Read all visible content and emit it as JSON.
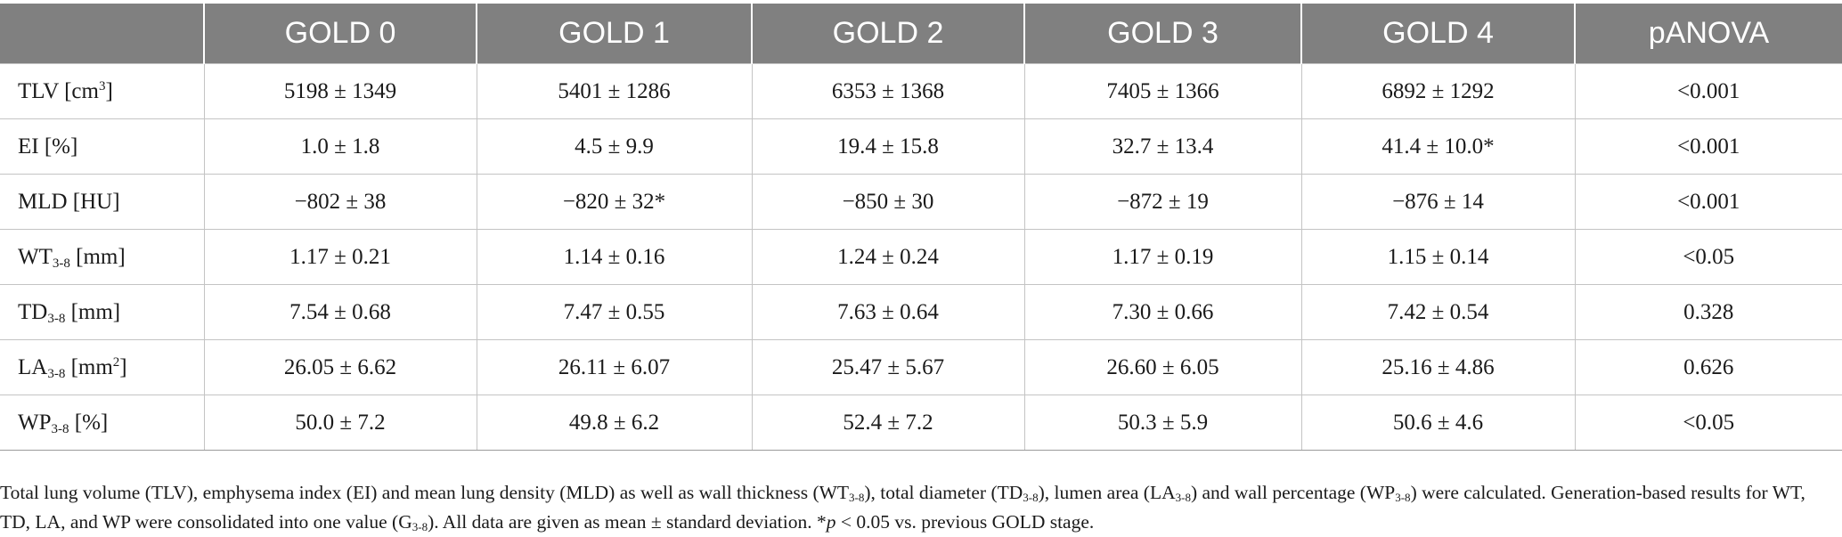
{
  "table": {
    "header": [
      "",
      "GOLD 0",
      "GOLD 1",
      "GOLD 2",
      "GOLD 3",
      "GOLD 4",
      "pANOVA"
    ],
    "rows": [
      {
        "label": {
          "main": "TLV [cm",
          "sub": "",
          "sup": "3",
          "unit": "]"
        },
        "cells": [
          "5198 ± 1349",
          "5401 ± 1286",
          "6353 ± 1368",
          "7405 ± 1366",
          "6892 ± 1292",
          "<0.001"
        ]
      },
      {
        "label": {
          "main": "EI [%]",
          "sub": "",
          "sup": "",
          "unit": ""
        },
        "cells": [
          "1.0 ± 1.8",
          "4.5 ± 9.9",
          "19.4 ± 15.8",
          "32.7 ± 13.4",
          "41.4 ± 10.0*",
          "<0.001"
        ]
      },
      {
        "label": {
          "main": "MLD [HU]",
          "sub": "",
          "sup": "",
          "unit": ""
        },
        "cells": [
          "−802 ± 38",
          "−820 ± 32*",
          "−850 ± 30",
          "−872 ± 19",
          "−876 ± 14",
          "<0.001"
        ]
      },
      {
        "label": {
          "main": "WT",
          "sub": "3-8",
          "sup": "",
          "unit": " [mm]"
        },
        "cells": [
          "1.17 ± 0.21",
          "1.14 ± 0.16",
          "1.24 ± 0.24",
          "1.17 ± 0.19",
          "1.15 ± 0.14",
          "<0.05"
        ]
      },
      {
        "label": {
          "main": "TD",
          "sub": "3-8",
          "sup": "",
          "unit": " [mm]"
        },
        "cells": [
          "7.54 ± 0.68",
          "7.47 ± 0.55",
          "7.63 ± 0.64",
          "7.30 ± 0.66",
          "7.42 ± 0.54",
          "0.328"
        ]
      },
      {
        "label": {
          "main": "LA",
          "sub": "3-8",
          "sup": "",
          "unit": " [mm"
        },
        "label_sup2": "2",
        "label_tail": "]",
        "cells": [
          "26.05 ± 6.62",
          "26.11 ± 6.07",
          "25.47 ± 5.67",
          "26.60 ± 6.05",
          "25.16 ± 4.86",
          "0.626"
        ]
      },
      {
        "label": {
          "main": "WP",
          "sub": "3-8",
          "sup": "",
          "unit": " [%]"
        },
        "cells": [
          "50.0 ± 7.2",
          "49.8 ± 6.2",
          "52.4 ± 7.2",
          "50.3 ± 5.9",
          "50.6 ± 4.6",
          "<0.05"
        ]
      }
    ]
  },
  "footnote": {
    "t1": "Total lung volume (TLV), emphysema index (EI) and mean lung density (MLD) as well as wall thickness (WT",
    "s1": "3-8",
    "t2": "), total diameter (TD",
    "s2": "3-8",
    "t3": "), lumen area (LA",
    "s3": "3-8",
    "t4": ") and wall percentage (WP",
    "s4": "3-8",
    "t5": ") were calculated. Generation-based results for WT, TD, LA, and WP were consolidated into one value (G",
    "s5": "3-8",
    "t6": "). All data are given as mean ± standard deviation. *",
    "p": "p",
    "t7": " < 0.05 vs. previous GOLD stage."
  }
}
